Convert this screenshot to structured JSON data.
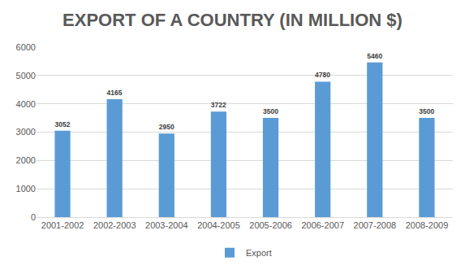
{
  "chart_data": {
    "type": "bar",
    "title": "EXPORT OF A COUNTRY (IN MILLION $)",
    "categories": [
      "2001-2002",
      "2002-2003",
      "2003-2004",
      "2004-2005",
      "2005-2006",
      "2006-2007",
      "2007-2008",
      "2008-2009"
    ],
    "series": [
      {
        "name": "Export",
        "color": "#5b9bd5",
        "values": [
          3052,
          4165,
          2950,
          3722,
          3500,
          4780,
          5460,
          3500
        ]
      }
    ],
    "ylim": [
      0,
      6000
    ],
    "yticks": [
      0,
      1000,
      2000,
      3000,
      4000,
      5000,
      6000
    ],
    "grid": true,
    "data_labels": true,
    "legend": "bottom"
  }
}
